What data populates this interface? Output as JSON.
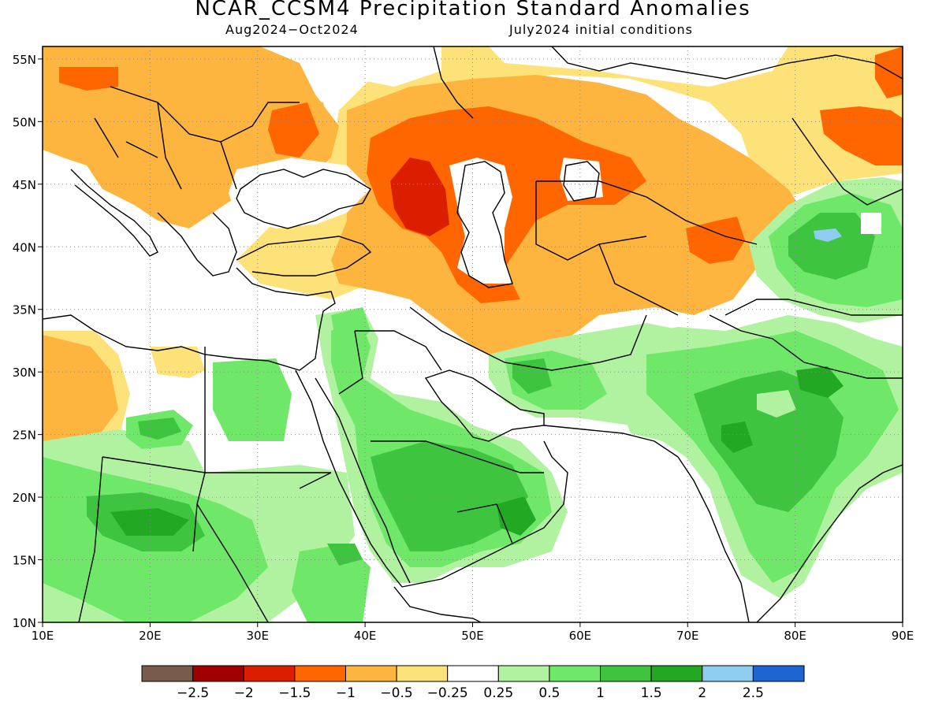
{
  "title": "NCAR_CCSM4 Precipitation Standard Anomalies",
  "subtitle_left": "Aug2024−Oct2024",
  "subtitle_right": "July2024 initial conditions",
  "map": {
    "lon_range": [
      10,
      90
    ],
    "lat_range": [
      10,
      56
    ],
    "x_ticks": [
      "10E",
      "20E",
      "30E",
      "40E",
      "50E",
      "60E",
      "70E",
      "80E",
      "90E"
    ],
    "y_ticks": [
      "10N",
      "15N",
      "20N",
      "25N",
      "30N",
      "35N",
      "40N",
      "45N",
      "50N",
      "55N"
    ],
    "grid": "dotted",
    "background": "#ffffff"
  },
  "colorbar": {
    "colors": [
      "#7a5a4a",
      "#a00000",
      "#dc1e00",
      "#ff6600",
      "#fdb540",
      "#fde27a",
      "#ffffff",
      "#b0f2a0",
      "#6fe86a",
      "#3ec43e",
      "#22a822",
      "#8ecdf0",
      "#1e64d2"
    ],
    "labels": [
      "−2.5",
      "−2",
      "−1.5",
      "−1",
      "−0.5",
      "−0.25",
      "0.25",
      "0.5",
      "1",
      "1.5",
      "2",
      "2.5"
    ]
  },
  "anomaly_regions": [
    {
      "name": "europe-dry",
      "value": -0.5,
      "color": "#fdb540"
    },
    {
      "name": "caspian-strong-dry",
      "value": -1.5,
      "color": "#dc1e00"
    },
    {
      "name": "caucasus-dry",
      "value": -1,
      "color": "#ff6600"
    },
    {
      "name": "central-asia-dry",
      "value": -0.5,
      "color": "#fdb540"
    },
    {
      "name": "arabia-wet",
      "value": 1,
      "color": "#6fe86a"
    },
    {
      "name": "india-wet",
      "value": 1.5,
      "color": "#3ec43e"
    },
    {
      "name": "sahel-wet",
      "value": 1,
      "color": "#6fe86a"
    },
    {
      "name": "western-china-wet",
      "value": 1.5,
      "color": "#3ec43e"
    },
    {
      "name": "tarim-very-wet",
      "value": 2,
      "color": "#8ecdf0"
    }
  ]
}
